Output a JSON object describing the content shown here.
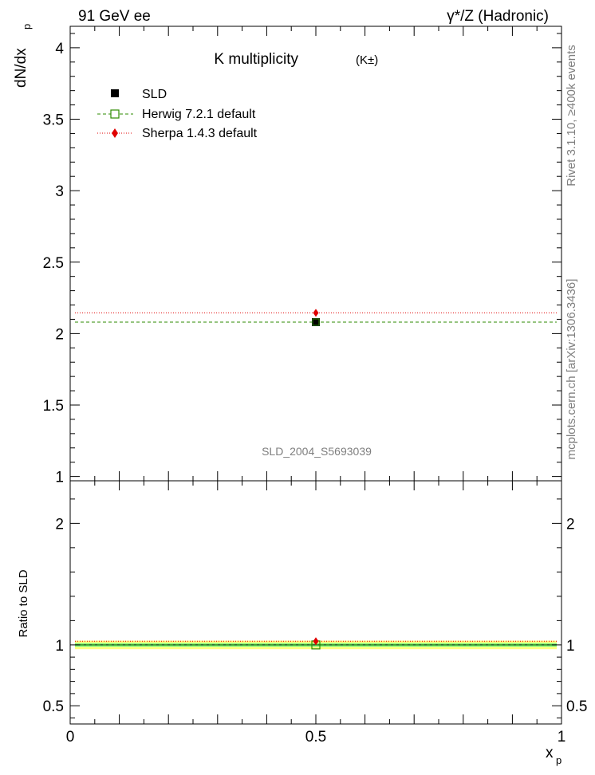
{
  "header": {
    "left": "91 GeV ee",
    "right": "γ*/Z (Hadronic)"
  },
  "side_labels": {
    "rivet": "Rivet 3.1.10, ≥400k events",
    "mcplots": "mcplots.cern.ch [arXiv:1306.3436]"
  },
  "watermark": "SLD_2004_S5693039",
  "colors": {
    "data": "#000000",
    "herwig": "#2e8b00",
    "sherpa": "#e00000",
    "band_inner": "#7fff7f",
    "band_outer": "#ffff7f"
  },
  "chart_data": [
    {
      "type": "scatter",
      "title": "K multiplicity",
      "title_suffix": "(K±)",
      "ylabel": "dN/dx",
      "ylabel_sub": "p",
      "xlim": [
        0,
        1
      ],
      "ylim": [
        0.97,
        4.15
      ],
      "yticks": [
        1,
        1.5,
        2,
        2.5,
        3,
        3.5,
        4
      ],
      "ytick_labels": [
        "1",
        "1.5",
        "2",
        "2.5",
        "3",
        "3.5",
        "4"
      ],
      "legend": [
        "SLD",
        "Herwig 7.2.1 default",
        "Sherpa 1.4.3 default"
      ],
      "legend_position": "top-left",
      "series": [
        {
          "name": "SLD",
          "x": 0.5,
          "y": 2.08,
          "yerr": 0.02,
          "style": "marker-square-filled"
        },
        {
          "name": "Herwig 7.2.1 default",
          "x": [
            0,
            1
          ],
          "y": 2.08,
          "style": "dashed-line-open-square"
        },
        {
          "name": "Sherpa 1.4.3 default",
          "x": [
            0,
            1
          ],
          "y": 2.145,
          "style": "dotted-line-diamond"
        }
      ]
    },
    {
      "type": "scatter",
      "title": "",
      "ylabel": "Ratio to SLD",
      "xlabel": "x",
      "xlabel_sub": "p",
      "xlim": [
        0,
        1
      ],
      "ylim": [
        0.35,
        2.35
      ],
      "yticks": [
        0.5,
        1,
        2
      ],
      "ytick_labels": [
        "0.5",
        "1",
        "2"
      ],
      "xticks": [
        0,
        0.5,
        1
      ],
      "xtick_labels": [
        "0",
        "0.5",
        "1"
      ],
      "band_inner": [
        0.985,
        1.015
      ],
      "band_outer": [
        0.965,
        1.035
      ],
      "series": [
        {
          "name": "Herwig 7.2.1 default",
          "x": 0.5,
          "y": 1.0
        },
        {
          "name": "Sherpa 1.4.3 default",
          "x": 0.5,
          "y": 1.03
        }
      ]
    }
  ]
}
